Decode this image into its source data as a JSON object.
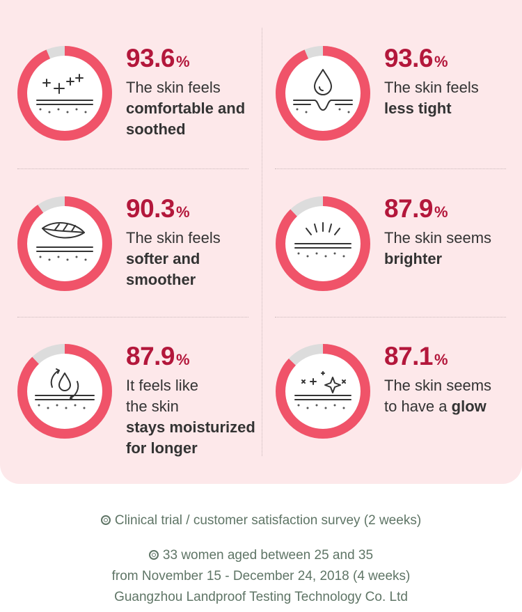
{
  "colors": {
    "accent": "#f05369",
    "track": "#dcdcdc",
    "percent_text": "#b3173b",
    "footer_text": "#5f7566",
    "panel": "#fde8ea"
  },
  "stats": [
    {
      "value": 93.6,
      "number": "93.6",
      "unit": "%",
      "light": [
        "The skin feels"
      ],
      "bold": [
        "comfortable and",
        "soothed"
      ],
      "icon": "crosses-on-skin-icon"
    },
    {
      "value": 93.6,
      "number": "93.6",
      "unit": "%",
      "light": [
        "The skin feels"
      ],
      "bold": [
        "less tight"
      ],
      "icon": "water-drop-skin-icon"
    },
    {
      "value": 90.3,
      "number": "90.3",
      "unit": "%",
      "light": [
        "The skin feels"
      ],
      "bold": [
        "softer and",
        "smoother"
      ],
      "icon": "leaf-on-skin-icon"
    },
    {
      "value": 87.9,
      "number": "87.9",
      "unit": "%",
      "light": [
        "The skin seems"
      ],
      "bold": [
        "brighter"
      ],
      "icon": "light-rays-skin-icon"
    },
    {
      "value": 87.9,
      "number": "87.9",
      "unit": "%",
      "light": [
        "It feels like",
        "the skin"
      ],
      "bold": [
        "stays moisturized",
        "for longer"
      ],
      "icon": "drop-cycle-skin-icon"
    },
    {
      "value": 87.1,
      "number": "87.1",
      "unit": "%",
      "light": [
        "The skin seems"
      ],
      "inline_prefix": "to have a ",
      "inline_bold": "glow",
      "icon": "sparkles-skin-icon"
    }
  ],
  "footer": {
    "line1": "Clinical trial / customer satisfaction survey (2 weeks)",
    "line2": "33 women aged between 25 and 35",
    "line3": "from November 15 - December 24, 2018 (4 weeks)",
    "line4": "Guangzhou Landproof Testing Technology Co. Ltd"
  }
}
